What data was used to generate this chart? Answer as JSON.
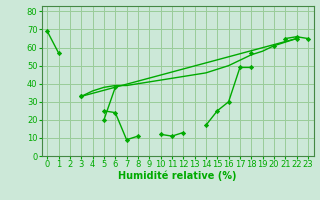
{
  "xlabel": "Humidité relative (%)",
  "xlim": [
    -0.5,
    23.5
  ],
  "ylim": [
    0,
    83
  ],
  "yticks": [
    0,
    10,
    20,
    30,
    40,
    50,
    60,
    70,
    80
  ],
  "xticks": [
    0,
    1,
    2,
    3,
    4,
    5,
    6,
    7,
    8,
    9,
    10,
    11,
    12,
    13,
    14,
    15,
    16,
    17,
    18,
    19,
    20,
    21,
    22,
    23
  ],
  "bg_color": "#cce8d8",
  "grid_color": "#99cc99",
  "line_color": "#00aa00",
  "line1_y": [
    69,
    57,
    null,
    33,
    null,
    25,
    24,
    9,
    11,
    null,
    12,
    11,
    13,
    null,
    17,
    25,
    30,
    49,
    49,
    null,
    null,
    65,
    66,
    65
  ],
  "line2_y": [
    null,
    null,
    null,
    33,
    36,
    38,
    39,
    39,
    40,
    41,
    42,
    43,
    44,
    45,
    46,
    48,
    50,
    53,
    56,
    58,
    61,
    63,
    65,
    null
  ],
  "line3_y": [
    null,
    null,
    null,
    33,
    null,
    null,
    null,
    null,
    null,
    null,
    null,
    null,
    null,
    null,
    null,
    null,
    null,
    null,
    null,
    null,
    null,
    null,
    65,
    null
  ],
  "line4_y": [
    null,
    null,
    null,
    33,
    null,
    20,
    38,
    null,
    null,
    null,
    null,
    null,
    null,
    null,
    null,
    null,
    null,
    null,
    57,
    null,
    61,
    null,
    65,
    null
  ],
  "fontsize_xlabel": 7,
  "tick_fontsize": 6
}
